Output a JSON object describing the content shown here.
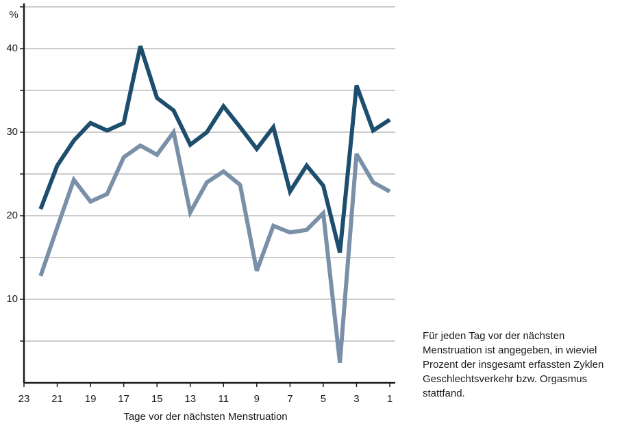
{
  "chart_data": {
    "type": "line",
    "y_unit_label": "%",
    "x_label": "Tage vor der nächsten Menstruation",
    "annotation": [
      "Für jeden Tag vor der nächsten",
      "Menstruation ist angegeben, in wieviel",
      "Prozent der insgesamt erfassten Zyklen",
      "Geschlechtsverkehr bzw. Orgasmus",
      "stattfand."
    ],
    "x": [
      22,
      21,
      20,
      19,
      18,
      17,
      16,
      15,
      14,
      13,
      12,
      11,
      10,
      9,
      8,
      7,
      6,
      5,
      4,
      3,
      2,
      1
    ],
    "series": [
      {
        "color": "#1d4e6e",
        "values": [
          20.8,
          26,
          29,
          31.1,
          30.2,
          31.1,
          40.3,
          34.1,
          32.6,
          28.5,
          30,
          33.1,
          30.6,
          28,
          30.6,
          22.9,
          26,
          23.6,
          15.6,
          35.6,
          30.2,
          31.5
        ]
      },
      {
        "color": "#7a8fa8",
        "values": [
          12.8,
          18.6,
          24.3,
          21.7,
          22.6,
          27,
          28.4,
          27.3,
          30,
          20.4,
          24,
          25.3,
          23.7,
          13.4,
          18.8,
          18,
          18.3,
          20.3,
          2.4,
          27.4,
          24,
          22.9
        ]
      }
    ],
    "xlim": [
      23,
      1
    ],
    "xticks": [
      23,
      21,
      19,
      17,
      15,
      13,
      11,
      9,
      7,
      5,
      3,
      1
    ],
    "ylim": [
      0,
      45
    ],
    "yticks": [
      10,
      20,
      30,
      40
    ],
    "minor_yticks": [
      5,
      15,
      25,
      35,
      45
    ],
    "grid": true
  }
}
